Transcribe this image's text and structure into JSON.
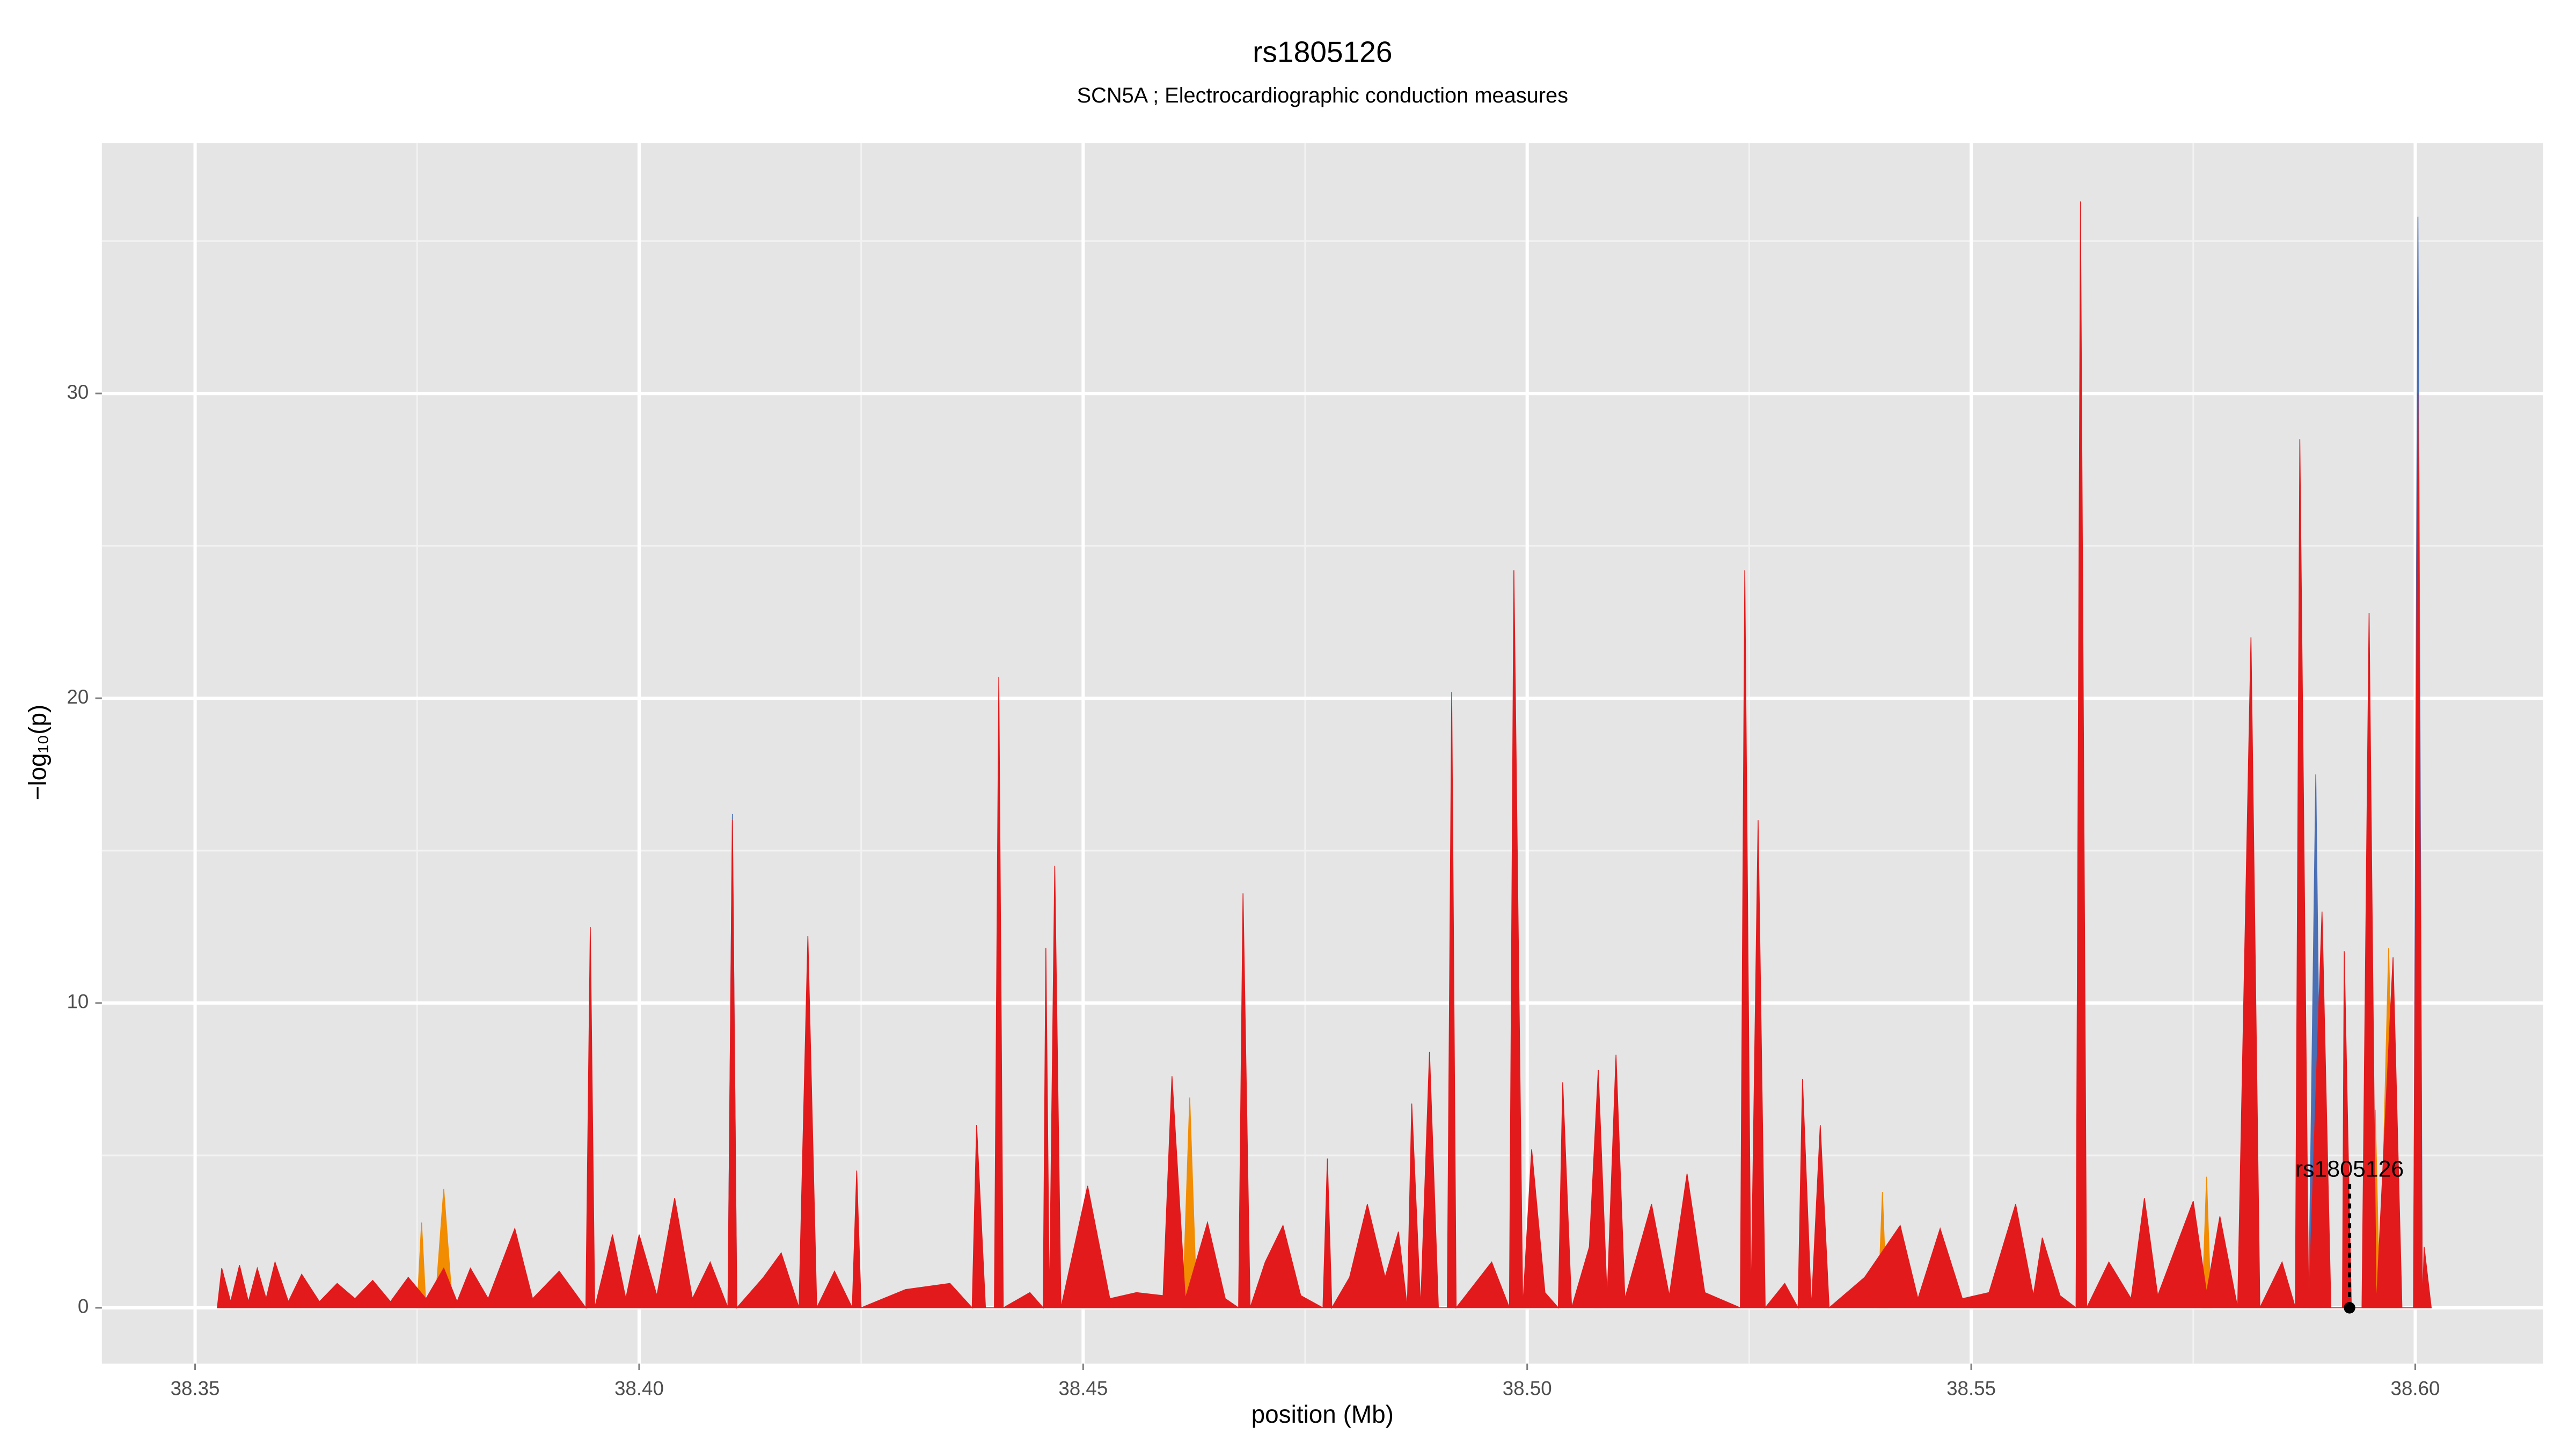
{
  "chart_data": {
    "type": "area",
    "title": "rs1805126",
    "subtitle": "SCN5A ; Electrocardiographic conduction measures",
    "x_label": "position (Mb)",
    "y_label": "−log₁₀(p)",
    "xlim": [
      38.3395,
      38.6144
    ],
    "ylim": [
      -1.83,
      38.22
    ],
    "xticks": [
      {
        "value": 38.35,
        "label": "38.35"
      },
      {
        "value": 38.4,
        "label": "38.40"
      },
      {
        "value": 38.45,
        "label": "38.45"
      },
      {
        "value": 38.5,
        "label": "38.50"
      },
      {
        "value": 38.55,
        "label": "38.55"
      },
      {
        "value": 38.6,
        "label": "38.60"
      }
    ],
    "yticks": [
      0,
      10,
      20,
      30
    ],
    "grid": true,
    "series": [
      {
        "color": "#4a6fb5",
        "x": [
          38.41,
          38.4105,
          38.411,
          38.4112,
          38.5075,
          38.508,
          38.5085,
          38.5087,
          38.588,
          38.5888,
          38.5895,
          38.5897,
          38.5998,
          38.6003,
          38.6008
        ],
        "values": [
          0,
          16.2,
          0,
          null,
          0,
          7.8,
          0,
          null,
          0,
          17.5,
          0,
          null,
          0,
          35.8,
          0
        ]
      },
      {
        "color": "#f28c00",
        "x": [
          38.375,
          38.3755,
          38.376,
          38.377,
          38.378,
          38.379,
          38.3792,
          38.4612,
          38.462,
          38.4628,
          38.463,
          38.5395,
          38.54,
          38.5405,
          38.5407,
          38.576,
          38.5765,
          38.577,
          38.5772,
          38.595,
          38.5955,
          38.596,
          38.597,
          38.598,
          38.5982
        ],
        "values": [
          0,
          2.8,
          0,
          0,
          3.9,
          0,
          null,
          0,
          6.9,
          0,
          null,
          0,
          3.8,
          0,
          null,
          0,
          4.3,
          0,
          null,
          0,
          6.5,
          0,
          11.8,
          0,
          null
        ]
      },
      {
        "color": "#e31a1c",
        "x": [
          38.3525,
          38.353,
          38.354,
          38.355,
          38.356,
          38.357,
          38.358,
          38.359,
          38.3605,
          38.362,
          38.364,
          38.366,
          38.368,
          38.37,
          38.372,
          38.374,
          38.376,
          38.378,
          38.3795,
          38.381,
          38.383,
          38.386,
          38.388,
          38.391,
          38.394,
          38.3945,
          38.395,
          38.397,
          38.3985,
          38.4,
          38.402,
          38.404,
          38.406,
          38.408,
          38.41,
          38.4105,
          38.411,
          38.414,
          38.416,
          38.418,
          38.419,
          38.42,
          38.422,
          38.424,
          38.4245,
          38.425,
          38.43,
          38.435,
          38.4375,
          38.438,
          38.439,
          38.44,
          38.4405,
          38.441,
          38.444,
          38.4455,
          38.4458,
          38.4462,
          38.4468,
          38.4475,
          38.4505,
          38.453,
          38.456,
          38.459,
          38.46,
          38.4615,
          38.464,
          38.466,
          38.4675,
          38.468,
          38.4688,
          38.4705,
          38.4725,
          38.4745,
          38.477,
          38.4775,
          38.478,
          38.48,
          38.482,
          38.484,
          38.4855,
          38.4865,
          38.487,
          38.488,
          38.489,
          38.49,
          38.491,
          38.4915,
          38.492,
          38.496,
          38.498,
          38.4985,
          38.4995,
          38.5005,
          38.502,
          38.5035,
          38.504,
          38.505,
          38.507,
          38.508,
          38.509,
          38.51,
          38.511,
          38.514,
          38.516,
          38.518,
          38.52,
          38.524,
          38.5245,
          38.5252,
          38.526,
          38.5268,
          38.529,
          38.5305,
          38.531,
          38.532,
          38.533,
          38.534,
          38.538,
          38.542,
          38.544,
          38.5465,
          38.549,
          38.552,
          38.555,
          38.557,
          38.558,
          38.56,
          38.5618,
          38.5623,
          38.563,
          38.5655,
          38.568,
          38.5695,
          38.571,
          38.575,
          38.5765,
          38.578,
          38.58,
          38.5815,
          38.5825,
          38.585,
          38.5865,
          38.587,
          38.588,
          38.5895,
          38.5905,
          38.5918,
          38.592,
          38.5928,
          38.594,
          38.5948,
          38.5956,
          38.5975,
          38.5985,
          38.5998,
          38.6003,
          38.6008,
          38.601,
          38.6018
        ],
        "values": [
          0,
          1.3,
          0.2,
          1.4,
          0.2,
          1.3,
          0.3,
          1.5,
          0.2,
          1.1,
          0.2,
          0.8,
          0.3,
          0.9,
          0.2,
          1.0,
          0.3,
          1.3,
          0.2,
          1.3,
          0.3,
          2.6,
          0.3,
          1.2,
          0,
          12.5,
          0,
          2.4,
          0.3,
          2.4,
          0.4,
          3.6,
          0.3,
          1.5,
          0,
          16,
          0,
          1.0,
          1.8,
          0,
          12.2,
          0,
          1.2,
          0,
          4.5,
          0,
          0.6,
          0.8,
          0,
          6.0,
          0,
          0,
          20.7,
          0,
          0.5,
          0,
          11.8,
          0,
          14.5,
          0,
          4.0,
          0.3,
          0.5,
          0.4,
          7.6,
          0.3,
          2.8,
          0.3,
          0,
          13.6,
          0,
          1.5,
          2.7,
          0.4,
          0,
          4.9,
          0,
          1.0,
          3.4,
          1.0,
          2.5,
          0,
          6.7,
          0,
          8.4,
          0,
          0,
          20.2,
          0,
          1.5,
          0,
          24.2,
          0,
          5.2,
          0.5,
          0,
          7.4,
          0,
          2.0,
          7.8,
          0.3,
          8.3,
          0.3,
          3.4,
          0.4,
          4.4,
          0.5,
          0,
          24.2,
          0,
          16.0,
          0,
          0.8,
          0,
          7.5,
          0,
          6.0,
          0,
          1.0,
          2.7,
          0.3,
          2.6,
          0.3,
          0.5,
          3.4,
          0.4,
          2.3,
          0.4,
          0,
          36.3,
          0,
          1.5,
          0.3,
          3.6,
          0.4,
          3.5,
          0.5,
          3.0,
          0,
          22.0,
          0,
          1.5,
          0,
          28.5,
          0,
          13.0,
          0,
          0,
          11.7,
          0,
          0,
          22.8,
          0,
          11.5,
          0,
          0,
          30,
          0,
          2.0,
          0
        ]
      }
    ],
    "annotation": {
      "text": "rs1805126",
      "x": 38.5926,
      "y": 4.5,
      "point_y": 0
    }
  }
}
